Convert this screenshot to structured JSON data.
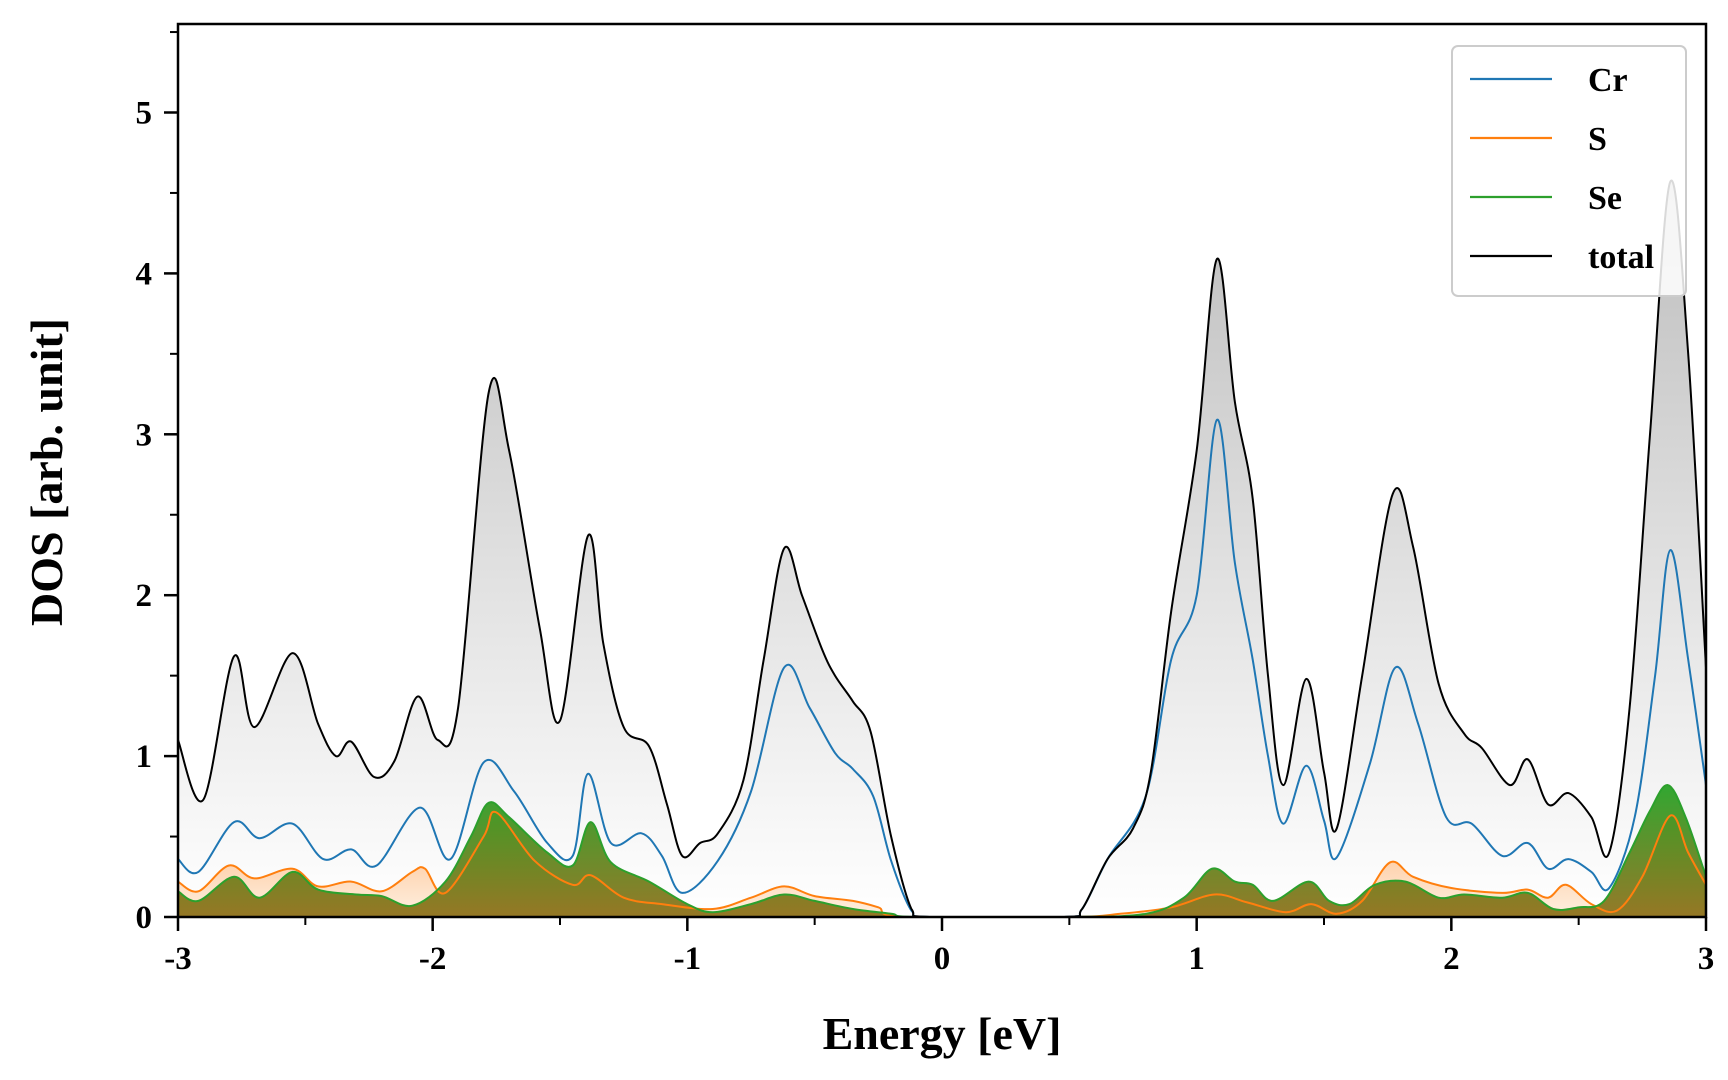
{
  "chart_data": {
    "type": "line",
    "title": "",
    "xlabel": "Energy [eV]",
    "ylabel": "DOS [arb. unit]",
    "xlim": [
      -3,
      3
    ],
    "ylim": [
      0,
      5.55
    ],
    "xticks": [
      -3,
      -2,
      -1,
      0,
      1,
      2,
      3
    ],
    "xtick_labels": [
      "-3",
      "-2",
      "-1",
      "0",
      "1",
      "2",
      "3"
    ],
    "yticks": [
      0,
      1,
      2,
      3,
      4,
      5
    ],
    "ytick_labels": [
      "0",
      "1",
      "2",
      "3",
      "4",
      "5"
    ],
    "grid": false,
    "legend_position": "top-right",
    "series": [
      {
        "name": "Cr",
        "color": "#1f77b4",
        "points": [
          [
            -3.0,
            0.36
          ],
          [
            -2.92,
            0.28
          ],
          [
            -2.78,
            0.59
          ],
          [
            -2.68,
            0.49
          ],
          [
            -2.55,
            0.58
          ],
          [
            -2.43,
            0.36
          ],
          [
            -2.32,
            0.42
          ],
          [
            -2.22,
            0.32
          ],
          [
            -2.05,
            0.68
          ],
          [
            -1.93,
            0.36
          ],
          [
            -1.8,
            0.96
          ],
          [
            -1.68,
            0.78
          ],
          [
            -1.55,
            0.46
          ],
          [
            -1.45,
            0.38
          ],
          [
            -1.39,
            0.89
          ],
          [
            -1.3,
            0.46
          ],
          [
            -1.18,
            0.52
          ],
          [
            -1.1,
            0.38
          ],
          [
            -1.02,
            0.15
          ],
          [
            -0.88,
            0.35
          ],
          [
            -0.75,
            0.78
          ],
          [
            -0.62,
            1.55
          ],
          [
            -0.52,
            1.3
          ],
          [
            -0.42,
            1.02
          ],
          [
            -0.35,
            0.92
          ],
          [
            -0.27,
            0.75
          ],
          [
            -0.2,
            0.35
          ],
          [
            -0.12,
            0.04
          ],
          [
            -0.05,
            0.0
          ],
          [
            0.48,
            0.0
          ],
          [
            0.55,
            0.05
          ],
          [
            0.65,
            0.36
          ],
          [
            0.8,
            0.75
          ],
          [
            0.9,
            1.6
          ],
          [
            1.0,
            2.0
          ],
          [
            1.08,
            3.09
          ],
          [
            1.15,
            2.2
          ],
          [
            1.22,
            1.6
          ],
          [
            1.28,
            1.0
          ],
          [
            1.34,
            0.58
          ],
          [
            1.43,
            0.94
          ],
          [
            1.5,
            0.6
          ],
          [
            1.55,
            0.37
          ],
          [
            1.68,
            0.95
          ],
          [
            1.78,
            1.55
          ],
          [
            1.87,
            1.2
          ],
          [
            1.98,
            0.62
          ],
          [
            2.08,
            0.58
          ],
          [
            2.2,
            0.38
          ],
          [
            2.3,
            0.46
          ],
          [
            2.38,
            0.3
          ],
          [
            2.46,
            0.36
          ],
          [
            2.55,
            0.28
          ],
          [
            2.62,
            0.18
          ],
          [
            2.72,
            0.62
          ],
          [
            2.8,
            1.5
          ],
          [
            2.86,
            2.28
          ],
          [
            2.93,
            1.6
          ],
          [
            3.0,
            0.82
          ]
        ]
      },
      {
        "name": "S",
        "color": "#ff7f0e",
        "points": [
          [
            -3.0,
            0.22
          ],
          [
            -2.92,
            0.16
          ],
          [
            -2.8,
            0.32
          ],
          [
            -2.7,
            0.24
          ],
          [
            -2.55,
            0.3
          ],
          [
            -2.45,
            0.19
          ],
          [
            -2.32,
            0.22
          ],
          [
            -2.2,
            0.16
          ],
          [
            -2.08,
            0.28
          ],
          [
            -2.03,
            0.3
          ],
          [
            -1.95,
            0.15
          ],
          [
            -1.8,
            0.5
          ],
          [
            -1.75,
            0.65
          ],
          [
            -1.6,
            0.35
          ],
          [
            -1.45,
            0.2
          ],
          [
            -1.38,
            0.26
          ],
          [
            -1.25,
            0.12
          ],
          [
            -1.1,
            0.08
          ],
          [
            -0.9,
            0.05
          ],
          [
            -0.75,
            0.12
          ],
          [
            -0.62,
            0.19
          ],
          [
            -0.5,
            0.13
          ],
          [
            -0.35,
            0.1
          ],
          [
            -0.25,
            0.06
          ],
          [
            -0.15,
            0.0
          ],
          [
            0.5,
            0.0
          ],
          [
            0.7,
            0.02
          ],
          [
            0.9,
            0.06
          ],
          [
            1.07,
            0.14
          ],
          [
            1.2,
            0.09
          ],
          [
            1.35,
            0.03
          ],
          [
            1.45,
            0.08
          ],
          [
            1.55,
            0.02
          ],
          [
            1.65,
            0.1
          ],
          [
            1.76,
            0.34
          ],
          [
            1.85,
            0.25
          ],
          [
            2.0,
            0.18
          ],
          [
            2.2,
            0.15
          ],
          [
            2.3,
            0.17
          ],
          [
            2.38,
            0.12
          ],
          [
            2.45,
            0.2
          ],
          [
            2.55,
            0.08
          ],
          [
            2.65,
            0.04
          ],
          [
            2.75,
            0.25
          ],
          [
            2.86,
            0.63
          ],
          [
            2.93,
            0.4
          ],
          [
            3.0,
            0.2
          ]
        ]
      },
      {
        "name": "Se",
        "color": "#2ca02c",
        "points": [
          [
            -3.0,
            0.16
          ],
          [
            -2.92,
            0.1
          ],
          [
            -2.78,
            0.25
          ],
          [
            -2.68,
            0.12
          ],
          [
            -2.55,
            0.28
          ],
          [
            -2.45,
            0.17
          ],
          [
            -2.3,
            0.14
          ],
          [
            -2.2,
            0.13
          ],
          [
            -2.08,
            0.07
          ],
          [
            -1.95,
            0.22
          ],
          [
            -1.85,
            0.5
          ],
          [
            -1.78,
            0.71
          ],
          [
            -1.7,
            0.62
          ],
          [
            -1.55,
            0.4
          ],
          [
            -1.45,
            0.32
          ],
          [
            -1.38,
            0.59
          ],
          [
            -1.3,
            0.34
          ],
          [
            -1.15,
            0.22
          ],
          [
            -1.0,
            0.08
          ],
          [
            -0.9,
            0.03
          ],
          [
            -0.75,
            0.08
          ],
          [
            -0.62,
            0.14
          ],
          [
            -0.5,
            0.1
          ],
          [
            -0.35,
            0.05
          ],
          [
            -0.2,
            0.02
          ],
          [
            -0.1,
            0.0
          ],
          [
            0.5,
            0.0
          ],
          [
            0.8,
            0.02
          ],
          [
            0.95,
            0.12
          ],
          [
            1.06,
            0.3
          ],
          [
            1.15,
            0.22
          ],
          [
            1.22,
            0.2
          ],
          [
            1.3,
            0.1
          ],
          [
            1.44,
            0.22
          ],
          [
            1.52,
            0.1
          ],
          [
            1.6,
            0.08
          ],
          [
            1.7,
            0.2
          ],
          [
            1.82,
            0.22
          ],
          [
            1.95,
            0.12
          ],
          [
            2.05,
            0.14
          ],
          [
            2.2,
            0.12
          ],
          [
            2.3,
            0.15
          ],
          [
            2.4,
            0.05
          ],
          [
            2.5,
            0.06
          ],
          [
            2.6,
            0.1
          ],
          [
            2.7,
            0.4
          ],
          [
            2.78,
            0.66
          ],
          [
            2.85,
            0.82
          ],
          [
            2.92,
            0.62
          ],
          [
            3.0,
            0.25
          ]
        ]
      },
      {
        "name": "total",
        "color": "#000000",
        "points": [
          [
            -3.0,
            1.1
          ],
          [
            -2.9,
            0.73
          ],
          [
            -2.78,
            1.62
          ],
          [
            -2.7,
            1.18
          ],
          [
            -2.55,
            1.64
          ],
          [
            -2.45,
            1.2
          ],
          [
            -2.38,
            1.0
          ],
          [
            -2.32,
            1.09
          ],
          [
            -2.23,
            0.87
          ],
          [
            -2.15,
            0.97
          ],
          [
            -2.06,
            1.37
          ],
          [
            -1.98,
            1.1
          ],
          [
            -1.9,
            1.3
          ],
          [
            -1.78,
            3.26
          ],
          [
            -1.7,
            2.9
          ],
          [
            -1.58,
            1.8
          ],
          [
            -1.5,
            1.22
          ],
          [
            -1.39,
            2.37
          ],
          [
            -1.33,
            1.7
          ],
          [
            -1.25,
            1.18
          ],
          [
            -1.15,
            1.06
          ],
          [
            -1.08,
            0.7
          ],
          [
            -1.02,
            0.38
          ],
          [
            -0.95,
            0.46
          ],
          [
            -0.88,
            0.52
          ],
          [
            -0.78,
            0.85
          ],
          [
            -0.7,
            1.6
          ],
          [
            -0.62,
            2.29
          ],
          [
            -0.55,
            2.0
          ],
          [
            -0.47,
            1.66
          ],
          [
            -0.42,
            1.5
          ],
          [
            -0.35,
            1.34
          ],
          [
            -0.28,
            1.15
          ],
          [
            -0.2,
            0.5
          ],
          [
            -0.12,
            0.05
          ],
          [
            -0.05,
            0.0
          ],
          [
            0.48,
            0.0
          ],
          [
            0.55,
            0.05
          ],
          [
            0.65,
            0.36
          ],
          [
            0.75,
            0.55
          ],
          [
            0.82,
            0.9
          ],
          [
            0.9,
            1.9
          ],
          [
            1.0,
            2.9
          ],
          [
            1.08,
            4.09
          ],
          [
            1.15,
            3.2
          ],
          [
            1.22,
            2.6
          ],
          [
            1.28,
            1.5
          ],
          [
            1.34,
            0.82
          ],
          [
            1.43,
            1.48
          ],
          [
            1.5,
            0.9
          ],
          [
            1.55,
            0.55
          ],
          [
            1.65,
            1.5
          ],
          [
            1.77,
            2.63
          ],
          [
            1.85,
            2.3
          ],
          [
            1.95,
            1.45
          ],
          [
            2.05,
            1.14
          ],
          [
            2.12,
            1.05
          ],
          [
            2.23,
            0.82
          ],
          [
            2.3,
            0.98
          ],
          [
            2.38,
            0.7
          ],
          [
            2.46,
            0.77
          ],
          [
            2.55,
            0.62
          ],
          [
            2.62,
            0.4
          ],
          [
            2.7,
            1.3
          ],
          [
            2.78,
            3.0
          ],
          [
            2.86,
            4.57
          ],
          [
            2.93,
            3.5
          ],
          [
            3.0,
            1.55
          ]
        ]
      }
    ]
  }
}
